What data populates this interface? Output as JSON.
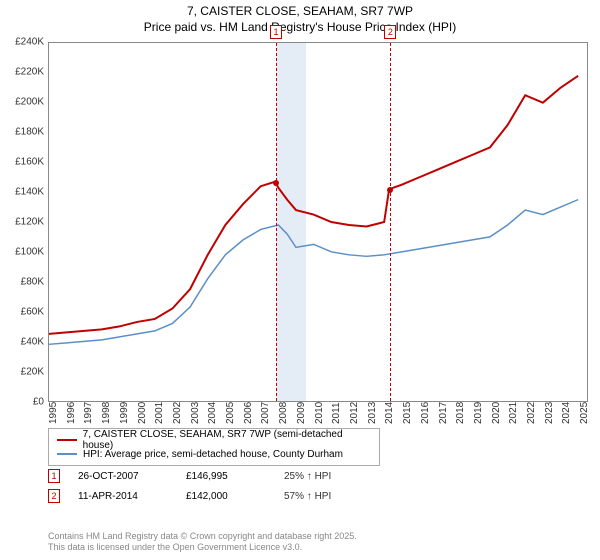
{
  "title": "7, CAISTER CLOSE, SEAHAM, SR7 7WP",
  "subtitle": "Price paid vs. HM Land Registry's House Price Index (HPI)",
  "chart": {
    "type": "line",
    "xlim": [
      1995,
      2025.5
    ],
    "ylim": [
      0,
      240000
    ],
    "ytick_step": 20000,
    "ytick_labels": [
      "£0",
      "£20K",
      "£40K",
      "£60K",
      "£80K",
      "£100K",
      "£120K",
      "£140K",
      "£160K",
      "£180K",
      "£200K",
      "£220K",
      "£240K"
    ],
    "xtick_step": 1,
    "xtick_labels": [
      "1995",
      "1996",
      "1997",
      "1998",
      "1999",
      "2000",
      "2001",
      "2002",
      "2003",
      "2004",
      "2005",
      "2006",
      "2007",
      "2008",
      "2009",
      "2010",
      "2011",
      "2012",
      "2013",
      "2014",
      "2015",
      "2016",
      "2017",
      "2018",
      "2019",
      "2020",
      "2021",
      "2022",
      "2023",
      "2024",
      "2025"
    ],
    "background_color": "#ffffff",
    "border_color": "#888888",
    "shade_color": "#e4edf5",
    "shade_ranges": [
      [
        2007.82,
        2009.5
      ],
      [
        2014.28,
        2014.28
      ]
    ],
    "series": [
      {
        "name": "price_paid",
        "color": "#c00000",
        "width": 2,
        "label": "7, CAISTER CLOSE, SEAHAM, SR7 7WP (semi-detached house)",
        "data": [
          [
            1995,
            45000
          ],
          [
            1996,
            46000
          ],
          [
            1997,
            47000
          ],
          [
            1998,
            48000
          ],
          [
            1999,
            50000
          ],
          [
            2000,
            53000
          ],
          [
            2001,
            55000
          ],
          [
            2002,
            62000
          ],
          [
            2003,
            75000
          ],
          [
            2004,
            98000
          ],
          [
            2005,
            118000
          ],
          [
            2006,
            132000
          ],
          [
            2007,
            144000
          ],
          [
            2007.82,
            146995
          ],
          [
            2008,
            143000
          ],
          [
            2008.5,
            135000
          ],
          [
            2009,
            128000
          ],
          [
            2010,
            125000
          ],
          [
            2011,
            120000
          ],
          [
            2012,
            118000
          ],
          [
            2013,
            117000
          ],
          [
            2014,
            120000
          ],
          [
            2014.28,
            142000
          ],
          [
            2015,
            145000
          ],
          [
            2016,
            150000
          ],
          [
            2017,
            155000
          ],
          [
            2018,
            160000
          ],
          [
            2019,
            165000
          ],
          [
            2020,
            170000
          ],
          [
            2021,
            185000
          ],
          [
            2022,
            205000
          ],
          [
            2023,
            200000
          ],
          [
            2024,
            210000
          ],
          [
            2025,
            218000
          ]
        ]
      },
      {
        "name": "hpi",
        "color": "#5b8fc7",
        "width": 1.5,
        "label": "HPI: Average price, semi-detached house, County Durham",
        "data": [
          [
            1995,
            38000
          ],
          [
            1996,
            39000
          ],
          [
            1997,
            40000
          ],
          [
            1998,
            41000
          ],
          [
            1999,
            43000
          ],
          [
            2000,
            45000
          ],
          [
            2001,
            47000
          ],
          [
            2002,
            52000
          ],
          [
            2003,
            63000
          ],
          [
            2004,
            82000
          ],
          [
            2005,
            98000
          ],
          [
            2006,
            108000
          ],
          [
            2007,
            115000
          ],
          [
            2008,
            118000
          ],
          [
            2008.5,
            112000
          ],
          [
            2009,
            103000
          ],
          [
            2010,
            105000
          ],
          [
            2011,
            100000
          ],
          [
            2012,
            98000
          ],
          [
            2013,
            97000
          ],
          [
            2014,
            98000
          ],
          [
            2015,
            100000
          ],
          [
            2016,
            102000
          ],
          [
            2017,
            104000
          ],
          [
            2018,
            106000
          ],
          [
            2019,
            108000
          ],
          [
            2020,
            110000
          ],
          [
            2021,
            118000
          ],
          [
            2022,
            128000
          ],
          [
            2023,
            125000
          ],
          [
            2024,
            130000
          ],
          [
            2025,
            135000
          ]
        ]
      }
    ],
    "markers": [
      {
        "n": "1",
        "x": 2007.82,
        "y": 146995
      },
      {
        "n": "2",
        "x": 2014.28,
        "y": 142000
      }
    ]
  },
  "sales": [
    {
      "n": "1",
      "date": "26-OCT-2007",
      "price": "£146,995",
      "delta": "25% ↑ HPI"
    },
    {
      "n": "2",
      "date": "11-APR-2014",
      "price": "£142,000",
      "delta": "57% ↑ HPI"
    }
  ],
  "footer1": "Contains HM Land Registry data © Crown copyright and database right 2025.",
  "footer2": "This data is licensed under the Open Government Licence v3.0."
}
